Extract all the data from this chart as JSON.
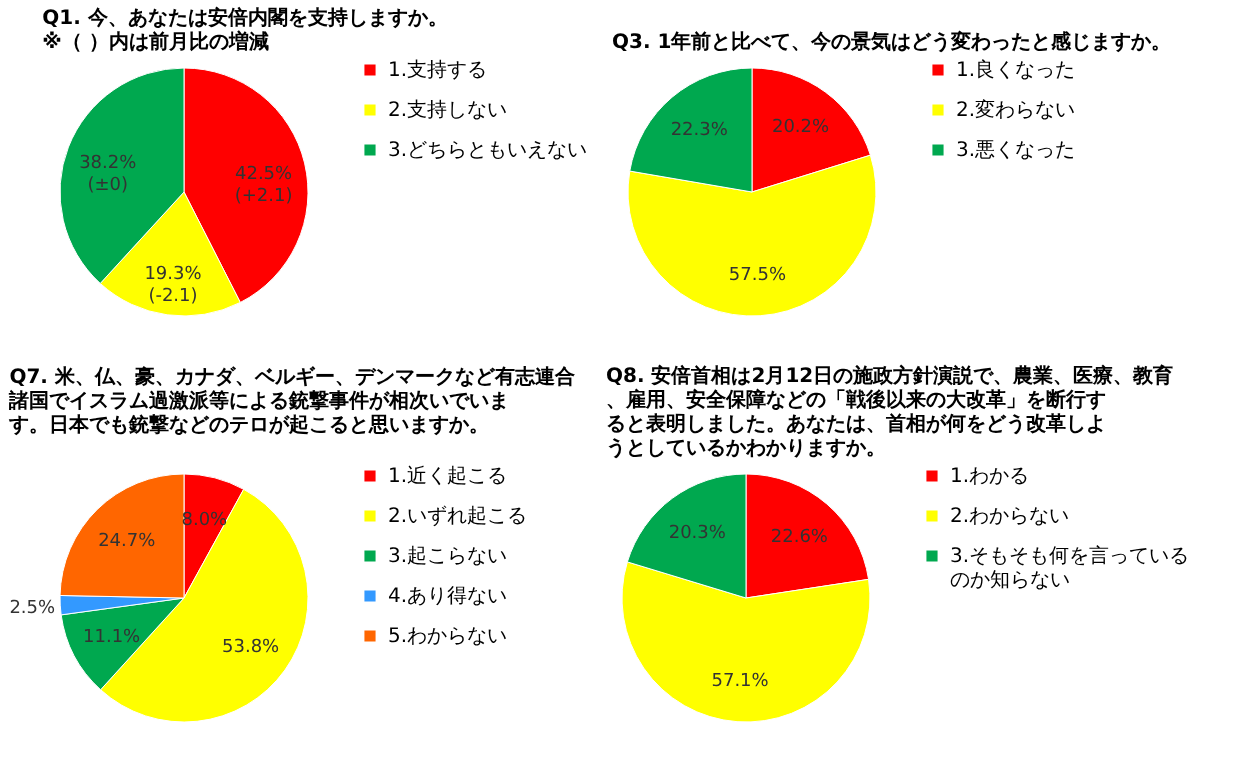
{
  "chart_data": [
    {
      "type": "pie",
      "title": "Q1.  今、あなたは安倍内閣を支持しますか。\n       ※（ ）内は前月比の増減",
      "categories": [
        "1.支持する",
        "2.支持しない",
        "3.どちらともいえない"
      ],
      "values": [
        42.5,
        19.3,
        38.2
      ],
      "colors": [
        "#ff0000",
        "#ffff00",
        "#00a84f"
      ],
      "value_labels": [
        "42.5%\n(+2.1)",
        "19.3%\n(-2.1)",
        "38.2%\n(±0)"
      ],
      "legend": "right"
    },
    {
      "type": "pie",
      "title": "Q3.  1年前と比べて、今の景気はどう変わったと感じますか。",
      "categories": [
        "1.良くなった",
        "2.変わらない",
        "3.悪くなった"
      ],
      "values": [
        20.2,
        57.5,
        22.3
      ],
      "colors": [
        "#ff0000",
        "#ffff00",
        "#00a84f"
      ],
      "value_labels": [
        "20.2%",
        "57.5%",
        "22.3%"
      ],
      "legend": "right"
    },
    {
      "type": "pie",
      "title": "Q7.  米、仏、豪、カナダ、ベルギー、デンマークなど有志連合諸国でイスラム過激派等による銃撃事件が相次いでいます。日本でも銃撃などのテロが起こると思いますか。",
      "categories": [
        "1.近く起こる",
        "2.いずれ起こる",
        "3.起こらない",
        "4.あり得ない",
        "5.わからない"
      ],
      "values": [
        8.0,
        53.8,
        11.1,
        2.5,
        24.7
      ],
      "colors": [
        "#ff0000",
        "#ffff00",
        "#00a84f",
        "#3399ff",
        "#ff6600"
      ],
      "value_labels": [
        "8.0%",
        "53.8%",
        "11.1%",
        "2.5%",
        "24.7%"
      ],
      "legend": "right"
    },
    {
      "type": "pie",
      "title": "Q8.  安倍首相は2月12日の施政方針演説で、農業、医療、教育、雇用、安全保障などの「戦後以来の大改革」を断行すると表明しました。あなたは、首相が何をどう改革しようとしているかわかりますか。",
      "categories": [
        "1.わかる",
        "2.わからない",
        "3.そもそも何を言っているのか知らない"
      ],
      "values": [
        22.6,
        57.1,
        20.3
      ],
      "colors": [
        "#ff0000",
        "#ffff00",
        "#00a84f"
      ],
      "value_labels": [
        "22.6%",
        "57.1%",
        "20.3%"
      ],
      "legend": "right"
    }
  ]
}
